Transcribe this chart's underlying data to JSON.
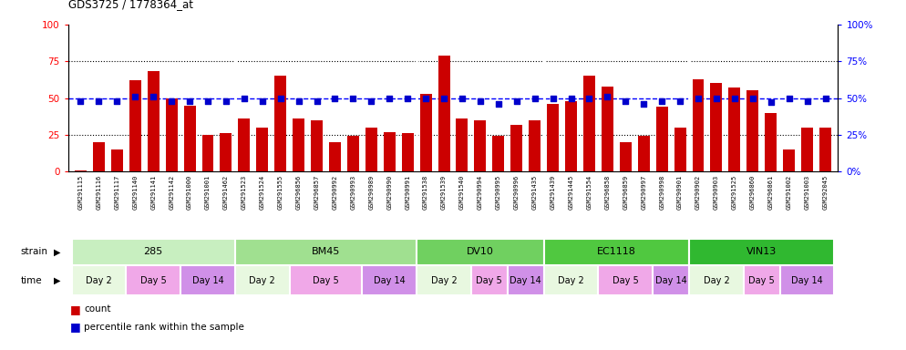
{
  "title": "GDS3725 / 1778364_at",
  "samples": [
    "GSM291115",
    "GSM291116",
    "GSM291117",
    "GSM291140",
    "GSM291141",
    "GSM291142",
    "GSM291000",
    "GSM291001",
    "GSM291462",
    "GSM291523",
    "GSM291524",
    "GSM291555",
    "GSM296856",
    "GSM296857",
    "GSM290992",
    "GSM290993",
    "GSM290989",
    "GSM290990",
    "GSM290991",
    "GSM291538",
    "GSM291539",
    "GSM291540",
    "GSM290994",
    "GSM290995",
    "GSM290996",
    "GSM291435",
    "GSM291439",
    "GSM291445",
    "GSM291554",
    "GSM296858",
    "GSM296859",
    "GSM290997",
    "GSM290998",
    "GSM290901",
    "GSM290902",
    "GSM290903",
    "GSM291525",
    "GSM296860",
    "GSM296861",
    "GSM291002",
    "GSM291003",
    "GSM292045"
  ],
  "bar_values": [
    1,
    20,
    15,
    62,
    68,
    50,
    45,
    25,
    26,
    36,
    30,
    65,
    36,
    35,
    20,
    24,
    30,
    27,
    26,
    53,
    79,
    36,
    35,
    24,
    32,
    35,
    46,
    48,
    65,
    58,
    20,
    24,
    44,
    30,
    63,
    60,
    57,
    55,
    40,
    15,
    30,
    30
  ],
  "blue_values": [
    48,
    48,
    48,
    51,
    51,
    48,
    48,
    48,
    48,
    50,
    48,
    50,
    48,
    48,
    50,
    50,
    48,
    50,
    50,
    50,
    50,
    50,
    48,
    46,
    48,
    50,
    50,
    50,
    50,
    51,
    48,
    46,
    48,
    48,
    50,
    50,
    50,
    50,
    47,
    50,
    48,
    50
  ],
  "strains": [
    {
      "name": "285",
      "start": 0,
      "end": 8,
      "color": "#c8efc0"
    },
    {
      "name": "BM45",
      "start": 9,
      "end": 18,
      "color": "#a0e090"
    },
    {
      "name": "DV10",
      "start": 19,
      "end": 25,
      "color": "#70d060"
    },
    {
      "name": "EC1118",
      "start": 26,
      "end": 33,
      "color": "#50c840"
    },
    {
      "name": "VIN13",
      "start": 34,
      "end": 41,
      "color": "#30b830"
    }
  ],
  "times": [
    {
      "name": "Day 2",
      "start": 0,
      "end": 2,
      "color": "#e8f8e0"
    },
    {
      "name": "Day 5",
      "start": 3,
      "end": 5,
      "color": "#f0a8e8"
    },
    {
      "name": "Day 14",
      "start": 6,
      "end": 8,
      "color": "#d090e8"
    },
    {
      "name": "Day 2",
      "start": 9,
      "end": 11,
      "color": "#e8f8e0"
    },
    {
      "name": "Day 5",
      "start": 12,
      "end": 15,
      "color": "#f0a8e8"
    },
    {
      "name": "Day 14",
      "start": 16,
      "end": 18,
      "color": "#d090e8"
    },
    {
      "name": "Day 2",
      "start": 19,
      "end": 21,
      "color": "#e8f8e0"
    },
    {
      "name": "Day 5",
      "start": 22,
      "end": 23,
      "color": "#f0a8e8"
    },
    {
      "name": "Day 14",
      "start": 24,
      "end": 25,
      "color": "#d090e8"
    },
    {
      "name": "Day 2",
      "start": 26,
      "end": 28,
      "color": "#e8f8e0"
    },
    {
      "name": "Day 5",
      "start": 29,
      "end": 31,
      "color": "#f0a8e8"
    },
    {
      "name": "Day 14",
      "start": 32,
      "end": 33,
      "color": "#d090e8"
    },
    {
      "name": "Day 2",
      "start": 34,
      "end": 36,
      "color": "#e8f8e0"
    },
    {
      "name": "Day 5",
      "start": 37,
      "end": 38,
      "color": "#f0a8e8"
    },
    {
      "name": "Day 14",
      "start": 39,
      "end": 41,
      "color": "#d090e8"
    }
  ],
  "bar_color": "#cc0000",
  "blue_color": "#0000cc",
  "ylim": [
    0,
    100
  ],
  "y_ticks": [
    0,
    25,
    50,
    75,
    100
  ],
  "grid_lines": [
    25,
    75
  ],
  "dashed_line": 50,
  "bg_color": "#ffffff",
  "plot_bg": "#ffffff",
  "xtick_bg": "#d8d8d8"
}
